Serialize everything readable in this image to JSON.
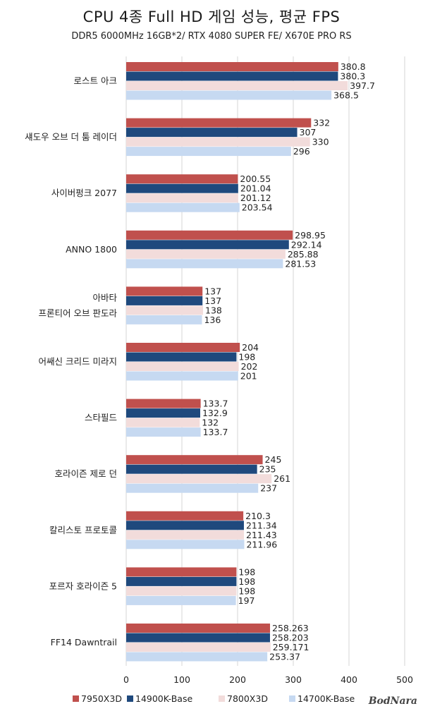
{
  "chart_data": {
    "type": "bar",
    "orientation": "horizontal",
    "title": "CPU 4종 Full HD 게임 성능, 평균 FPS",
    "subtitle": "DDR5 6000MHz 16GB*2/ RTX 4080 SUPER FE/ X670E PRO RS",
    "categories": [
      [
        "로스트 아크"
      ],
      [
        "섀도우 오브 더 툼 레이더"
      ],
      [
        "사이버펑크 2077"
      ],
      [
        "ANNO 1800"
      ],
      [
        "아바타",
        "프론티어 오브 판도라"
      ],
      [
        "어쌔신 크리드 미라지"
      ],
      [
        "스타필드"
      ],
      [
        "호라이즌 제로 던"
      ],
      [
        "칼리스토 프로토콜"
      ],
      [
        "포르자 호라이즌 5"
      ],
      [
        "FF14 Dawntrail"
      ]
    ],
    "series": [
      {
        "name": "7950X3D",
        "color": "#c0504d",
        "values": [
          380.8,
          332,
          200.55,
          298.95,
          137,
          204,
          133.7,
          245,
          210.3,
          198,
          258.263
        ],
        "labels": [
          "380.8",
          "332",
          "200.55",
          "298.95",
          "137",
          "204",
          "133.7",
          "245",
          "210.3",
          "198",
          "258.263"
        ]
      },
      {
        "name": "14900K-Base",
        "color": "#1f497d",
        "values": [
          380.3,
          307,
          201.04,
          292.14,
          137,
          198,
          132.9,
          235,
          211.34,
          198,
          258.203
        ],
        "labels": [
          "380.3",
          "307",
          "201.04",
          "292.14",
          "137",
          "198",
          "132.9",
          "235",
          "211.34",
          "198",
          "258.203"
        ]
      },
      {
        "name": "7800X3D",
        "color": "#f2dcdb",
        "values": [
          397.7,
          330,
          201.12,
          285.88,
          138,
          202,
          132,
          261,
          211.43,
          198,
          259.171
        ],
        "labels": [
          "397.7",
          "330",
          "201.12",
          "285.88",
          "138",
          "202",
          "132",
          "261",
          "211.43",
          "198",
          "259.171"
        ]
      },
      {
        "name": "14700K-Base",
        "color": "#c6d9f1",
        "values": [
          368.5,
          296,
          203.54,
          281.53,
          136,
          201,
          133.7,
          237,
          211.96,
          197,
          253.37
        ],
        "labels": [
          "368.5",
          "296",
          "203.54",
          "281.53",
          "136",
          "201",
          "133.7",
          "237",
          "211.96",
          "197",
          "253.37"
        ]
      }
    ],
    "xlim": [
      0,
      500
    ],
    "xticks": [
      0,
      100,
      200,
      300,
      400,
      500
    ],
    "grid": true,
    "legend": "bottom"
  },
  "watermark": "BodNara"
}
